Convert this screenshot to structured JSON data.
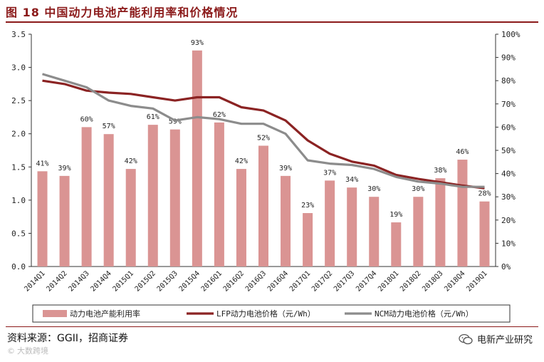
{
  "header": {
    "title": "图 18 中国动力电池产能利用率和价格情况"
  },
  "footer": {
    "source": "资料来源：GGII，招商证券",
    "wechat_name": "电新产业研究",
    "watermark": "大数跨境"
  },
  "colors": {
    "bar": "#DA9493",
    "lfp": "#8B2323",
    "ncm": "#8C8C8C",
    "title": "#8B1A1A"
  },
  "chart_data": {
    "type": "bar+line",
    "categories": [
      "2014Q1",
      "2014Q2",
      "2014Q3",
      "2014Q4",
      "2015Q1",
      "2015Q2",
      "2015Q3",
      "2015Q4",
      "2016Q1",
      "2016Q2",
      "2016Q3",
      "2016Q4",
      "2017Q1",
      "2017Q2",
      "2017Q3",
      "2017Q4",
      "2018Q1",
      "2018Q2",
      "2018Q3",
      "2018Q4",
      "2019Q1"
    ],
    "bar_series": {
      "name": "动力电池产能利用率",
      "values": [
        41,
        39,
        60,
        57,
        42,
        61,
        59,
        93,
        62,
        42,
        52,
        39,
        23,
        37,
        34,
        30,
        19,
        30,
        38,
        46,
        28
      ],
      "labels": [
        "41%",
        "39%",
        "60%",
        "57%",
        "42%",
        "61%",
        "59%",
        "93%",
        "62%",
        "42%",
        "52%",
        "39%",
        "23%",
        "37%",
        "34%",
        "30%",
        "19%",
        "30%",
        "38%",
        "46%",
        "28%"
      ]
    },
    "line_series": [
      {
        "name": "LFP动力电池价格（元/Wh）",
        "values": [
          2.8,
          2.75,
          2.65,
          2.62,
          2.6,
          2.55,
          2.5,
          2.55,
          2.55,
          2.4,
          2.35,
          2.2,
          1.9,
          1.7,
          1.58,
          1.52,
          1.38,
          1.32,
          1.27,
          1.22,
          1.18
        ]
      },
      {
        "name": "NCM动力电池价格（元/Wh）",
        "values": [
          2.9,
          2.8,
          2.7,
          2.5,
          2.42,
          2.38,
          2.2,
          2.25,
          2.22,
          2.15,
          2.15,
          2.0,
          1.6,
          1.55,
          1.53,
          1.47,
          1.35,
          1.28,
          1.25,
          1.2,
          1.2
        ]
      }
    ],
    "left_axis": {
      "range": [
        0,
        3.5
      ],
      "ticks": [
        "0.0",
        "0.5",
        "1.0",
        "1.5",
        "2.0",
        "2.5",
        "3.0",
        "3.5"
      ]
    },
    "right_axis": {
      "range": [
        0,
        100
      ],
      "ticks": [
        "0%",
        "10%",
        "20%",
        "30%",
        "40%",
        "50%",
        "60%",
        "70%",
        "80%",
        "90%",
        "100%"
      ]
    },
    "legend": [
      "动力电池产能利用率",
      "LFP动力电池价格（元/Wh）",
      "NCM动力电池价格（元/Wh）"
    ]
  }
}
